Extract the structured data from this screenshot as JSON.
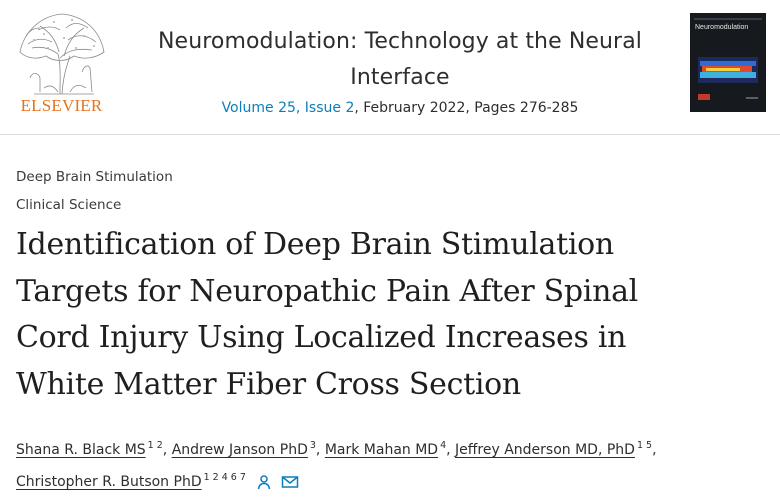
{
  "publisher": {
    "wordmark": "ELSEVIER"
  },
  "journal": {
    "title_line1": "Neuromodulation: Technology at the Neural",
    "title_line2": "Interface",
    "issue_link": "Volume 25, Issue 2",
    "issue_rest": ", February 2022, Pages 276-285",
    "cover_title": "Neuromodulation"
  },
  "sections": {
    "primary": "Deep Brain Stimulation",
    "secondary": "Clinical Science"
  },
  "article": {
    "title_lines": [
      "Identification of Deep Brain Stimulation",
      "Targets for Neuropathic Pain After Spinal",
      "Cord Injury Using Localized Increases in",
      "White Matter Fiber Cross Section"
    ]
  },
  "authors": [
    {
      "name": "Shana R. Black MS",
      "aff": "1 2",
      "sep": ", "
    },
    {
      "name": "Andrew Janson PhD",
      "aff": "3",
      "sep": ", "
    },
    {
      "name": "Mark Mahan MD",
      "aff": "4",
      "sep": ", "
    },
    {
      "name": "Jeffrey Anderson MD, PhD",
      "aff": "1 5",
      "sep": ","
    },
    {
      "name": "Christopher R. Butson PhD",
      "aff": "1 2 4 6 7",
      "sep": ""
    }
  ],
  "icons": {
    "person": "person-icon",
    "email": "envelope-icon"
  },
  "colors": {
    "link": "#0c7dbb",
    "publisher": "#e9711c",
    "text": "#1f1f1f"
  }
}
